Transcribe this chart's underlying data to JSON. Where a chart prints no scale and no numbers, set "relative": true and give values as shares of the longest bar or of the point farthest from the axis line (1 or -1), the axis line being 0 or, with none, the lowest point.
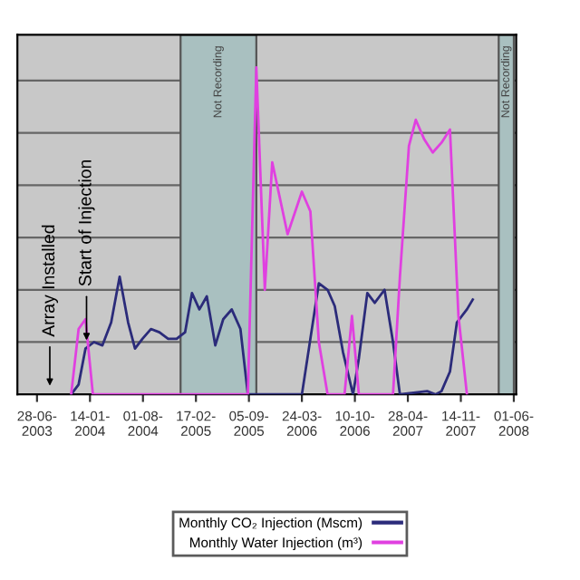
{
  "chart_data": {
    "type": "line",
    "relative": true,
    "grid": "y",
    "legend": "bottom",
    "marker": "none",
    "line_style": "solid",
    "xlim": [
      "2003-04-15",
      "2008-06-10"
    ],
    "xticks": [
      {
        "value": "2003-06-28",
        "label": "28-06-\n2003"
      },
      {
        "value": "2004-01-14",
        "label": "14-01-\n2004"
      },
      {
        "value": "2004-08-01",
        "label": "01-08-\n2004"
      },
      {
        "value": "2005-02-17",
        "label": "17-02-\n2005"
      },
      {
        "value": "2005-09-05",
        "label": "05-09-\n2005"
      },
      {
        "value": "2006-03-24",
        "label": "24-03-\n2006"
      },
      {
        "value": "2006-10-10",
        "label": "10-10-\n2006"
      },
      {
        "value": "2007-04-28",
        "label": "28-04-\n2007"
      },
      {
        "value": "2007-11-14",
        "label": "14-11-\n2007"
      },
      {
        "value": "2008-06-01",
        "label": "01-06-\n2008"
      }
    ],
    "series": [
      {
        "name": "Monthly CO₂ Injection (Mscm)",
        "color": "#2b2b7a",
        "x": [
          "2003-11-04",
          "2003-12-02",
          "2003-12-28",
          "2004-01-29",
          "2004-03-01",
          "2004-04-03",
          "2004-05-05",
          "2004-06-06",
          "2004-07-02",
          "2004-07-30",
          "2004-08-31",
          "2004-10-02",
          "2004-11-04",
          "2004-12-06",
          "2005-01-07",
          "2005-02-02",
          "2005-03-02",
          "2005-03-30",
          "2005-05-01",
          "2005-05-31",
          "2005-07-02",
          "2005-08-04",
          "2005-09-01",
          "2006-02-09",
          "2006-03-24",
          "2006-04-25",
          "2006-05-27",
          "2006-06-29",
          "2006-07-26",
          "2006-08-26",
          "2006-10-03",
          "2006-10-25",
          "2006-11-26",
          "2006-12-24",
          "2007-01-30",
          "2007-03-03",
          "2007-03-29",
          "2007-07-10",
          "2007-08-11",
          "2007-09-02",
          "2007-10-04",
          "2007-10-30",
          "2007-12-07",
          "2007-12-29"
        ],
        "values": [
          0,
          0.03,
          0.14,
          0.16,
          0.15,
          0.22,
          0.36,
          0.22,
          0.14,
          0.17,
          0.2,
          0.19,
          0.17,
          0.17,
          0.19,
          0.31,
          0.26,
          0.3,
          0.15,
          0.23,
          0.26,
          0.2,
          0,
          0,
          0,
          0.17,
          0.34,
          0.32,
          0.27,
          0.13,
          0,
          0.11,
          0.31,
          0.28,
          0.32,
          0.16,
          0,
          0.01,
          0,
          0.01,
          0.07,
          0.22,
          0.26,
          0.29
        ]
      },
      {
        "name": "Monthly Water Injection (m³)",
        "color": "#e040e0",
        "x": [
          "2003-11-04",
          "2003-12-02",
          "2003-12-28",
          "2004-01-25",
          "2005-09-01",
          "2005-10-03",
          "2005-11-04",
          "2005-12-02",
          "2006-01-29",
          "2006-03-24",
          "2006-04-25",
          "2006-05-27",
          "2006-06-29",
          "2006-09-01",
          "2006-09-29",
          "2006-10-25",
          "2007-03-03",
          "2007-03-29",
          "2007-05-02",
          "2007-05-28",
          "2007-06-29",
          "2007-07-31",
          "2007-09-02",
          "2007-10-04",
          "2007-11-05",
          "2007-12-07"
        ],
        "values": [
          0,
          0.2,
          0.23,
          0,
          0,
          1,
          0.32,
          0.71,
          0.49,
          0.62,
          0.56,
          0.16,
          0,
          0,
          0.24,
          0,
          0,
          0.36,
          0.76,
          0.84,
          0.78,
          0.74,
          0.77,
          0.81,
          0.24,
          0
        ]
      }
    ],
    "bands": [
      {
        "axis": "x",
        "from": "2004-12-21",
        "to": "2005-10-03",
        "label": "Not Recording",
        "color": "#a9c0c0"
      },
      {
        "axis": "x",
        "from": "2008-04-05",
        "to": "2008-06-01",
        "label": "Not Recording",
        "color": "#a9c0c0"
      }
    ],
    "annotations": [
      "Array Installed",
      {
        "text": "Start of Injection",
        "x": "2004-01-01",
        "y": 0.15
      }
    ]
  }
}
